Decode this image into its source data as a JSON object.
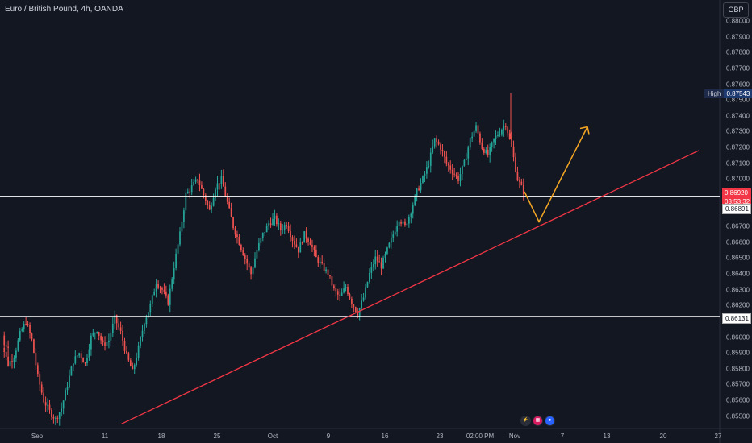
{
  "header": {
    "title": "Euro / British Pound, 4h, OANDA",
    "currency": "GBP"
  },
  "y_axis_labels": [
    "0.88000",
    "0.87900",
    "0.87800",
    "0.87700",
    "0.87600",
    "0.87500",
    "0.87400",
    "0.87300",
    "0.87200",
    "0.87100",
    "0.87000",
    "0.86700",
    "0.86600",
    "0.86500",
    "0.86400",
    "0.86300",
    "0.86200",
    "0.86000",
    "0.85900",
    "0.85800",
    "0.85700",
    "0.85600",
    "0.85500"
  ],
  "x_axis_labels": [
    "Sep",
    "11",
    "18",
    "25",
    "Oct",
    "9",
    "16",
    "23",
    "02:00 PM",
    "Nov",
    "7",
    "13",
    "20",
    "27"
  ],
  "tags": {
    "high_label": "High",
    "high_value": "0.87543",
    "price": "0.86920",
    "countdown": "03:53:32",
    "level_upper": "0.86891",
    "level_lower": "0.86131"
  },
  "colors": {
    "up": "#26a69a",
    "down": "#ef5350",
    "trend": "#f23645",
    "arrow": "#f5a623",
    "level": "#ffffff"
  },
  "icons": [
    "lightning-icon",
    "grid-icon",
    "circle-icon"
  ],
  "chart_data": {
    "type": "candlestick",
    "title": "Euro / British Pound, 4h, OANDA",
    "symbol": "EUR/GBP",
    "interval": "4h",
    "ylim": [
      0.8546,
      0.881
    ],
    "high": 0.87543,
    "last_price": 0.8692,
    "horizontal_levels": [
      0.86891,
      0.86131
    ],
    "closes": [
      0.8595,
      0.8583,
      0.8588,
      0.8602,
      0.861,
      0.8598,
      0.8575,
      0.856,
      0.8553,
      0.8548,
      0.8555,
      0.857,
      0.8585,
      0.859,
      0.8583,
      0.86,
      0.8605,
      0.8595,
      0.8598,
      0.8612,
      0.8603,
      0.8588,
      0.8578,
      0.8593,
      0.861,
      0.862,
      0.8635,
      0.863,
      0.8622,
      0.8645,
      0.8665,
      0.869,
      0.8695,
      0.87,
      0.869,
      0.868,
      0.8695,
      0.87,
      0.8685,
      0.867,
      0.866,
      0.865,
      0.864,
      0.8655,
      0.8665,
      0.8672,
      0.8675,
      0.8668,
      0.8672,
      0.8662,
      0.8655,
      0.8665,
      0.866,
      0.865,
      0.8645,
      0.864,
      0.863,
      0.8625,
      0.8632,
      0.8622,
      0.8615,
      0.8625,
      0.864,
      0.865,
      0.8645,
      0.8655,
      0.8665,
      0.8675,
      0.867,
      0.868,
      0.8692,
      0.87,
      0.871,
      0.8725,
      0.872,
      0.871,
      0.8705,
      0.87,
      0.871,
      0.8725,
      0.8733,
      0.872,
      0.8715,
      0.8725,
      0.873,
      0.8735,
      0.872,
      0.87,
      0.8692
    ],
    "projection_path": [
      0.8692,
      0.8673,
      0.8733
    ],
    "trendline": {
      "points": [
        0.8545,
        0.8718
      ]
    }
  }
}
